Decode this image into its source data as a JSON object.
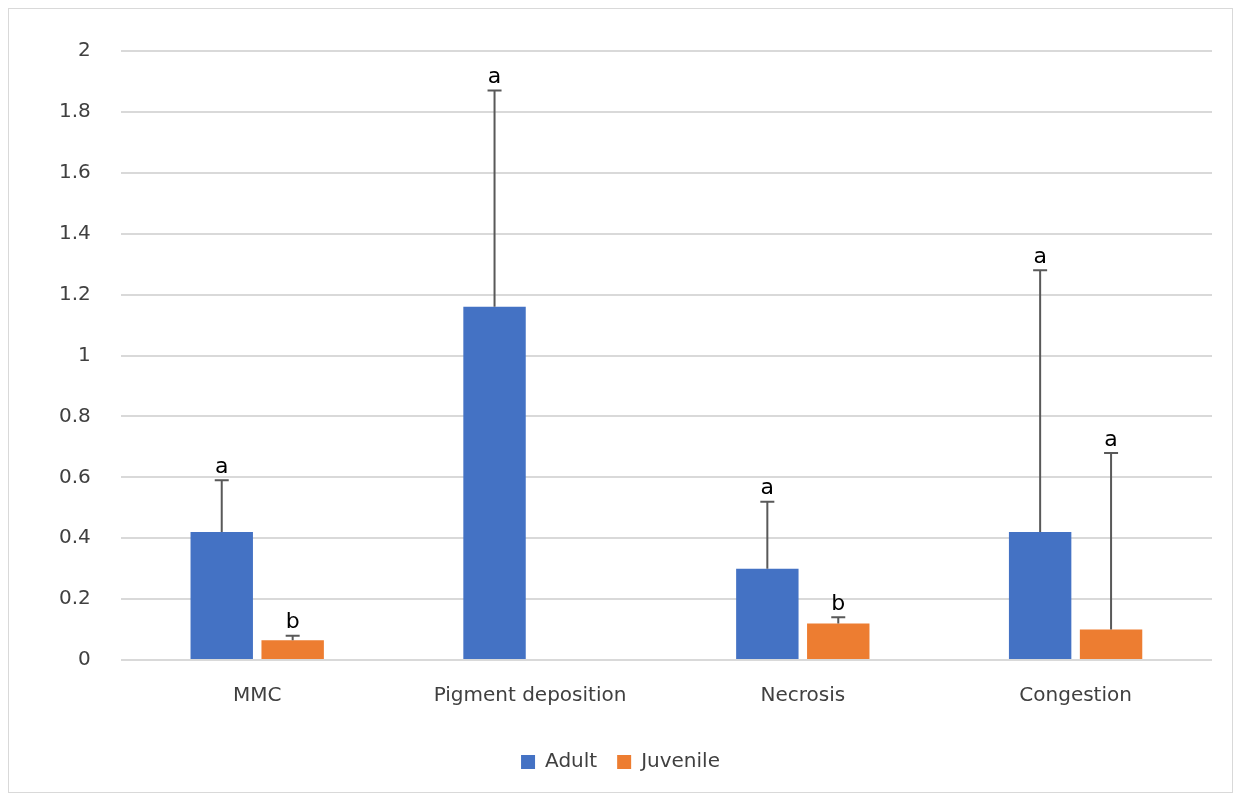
{
  "chart_data": {
    "type": "bar",
    "categories": [
      "MMC",
      "Pigment deposition",
      "Necrosis",
      "Congestion"
    ],
    "series": [
      {
        "name": "Adult",
        "color": "#4472c4",
        "values": [
          0.42,
          1.16,
          0.3,
          0.42
        ],
        "errors": [
          [
            0.42,
            0.59
          ],
          [
            1.16,
            1.87
          ],
          [
            0.3,
            0.52
          ],
          [
            0.42,
            1.28
          ]
        ]
      },
      {
        "name": "Juvenile",
        "color": "#ed7d31",
        "values": [
          0.065,
          0,
          0.12,
          0.1
        ],
        "errors": [
          [
            0.065,
            0.08
          ],
          null,
          [
            0.12,
            0.14
          ],
          [
            0.1,
            0.68
          ]
        ]
      }
    ],
    "ylim": [
      0,
      2
    ],
    "yticks": [
      0,
      0.2,
      0.4,
      0.6,
      0.8,
      1,
      1.2,
      1.4,
      1.6,
      1.8,
      2
    ],
    "grid": "y",
    "legend": "bottom",
    "annotations": [
      "a",
      "b",
      "a",
      "a",
      "b",
      "a",
      "a"
    ]
  }
}
